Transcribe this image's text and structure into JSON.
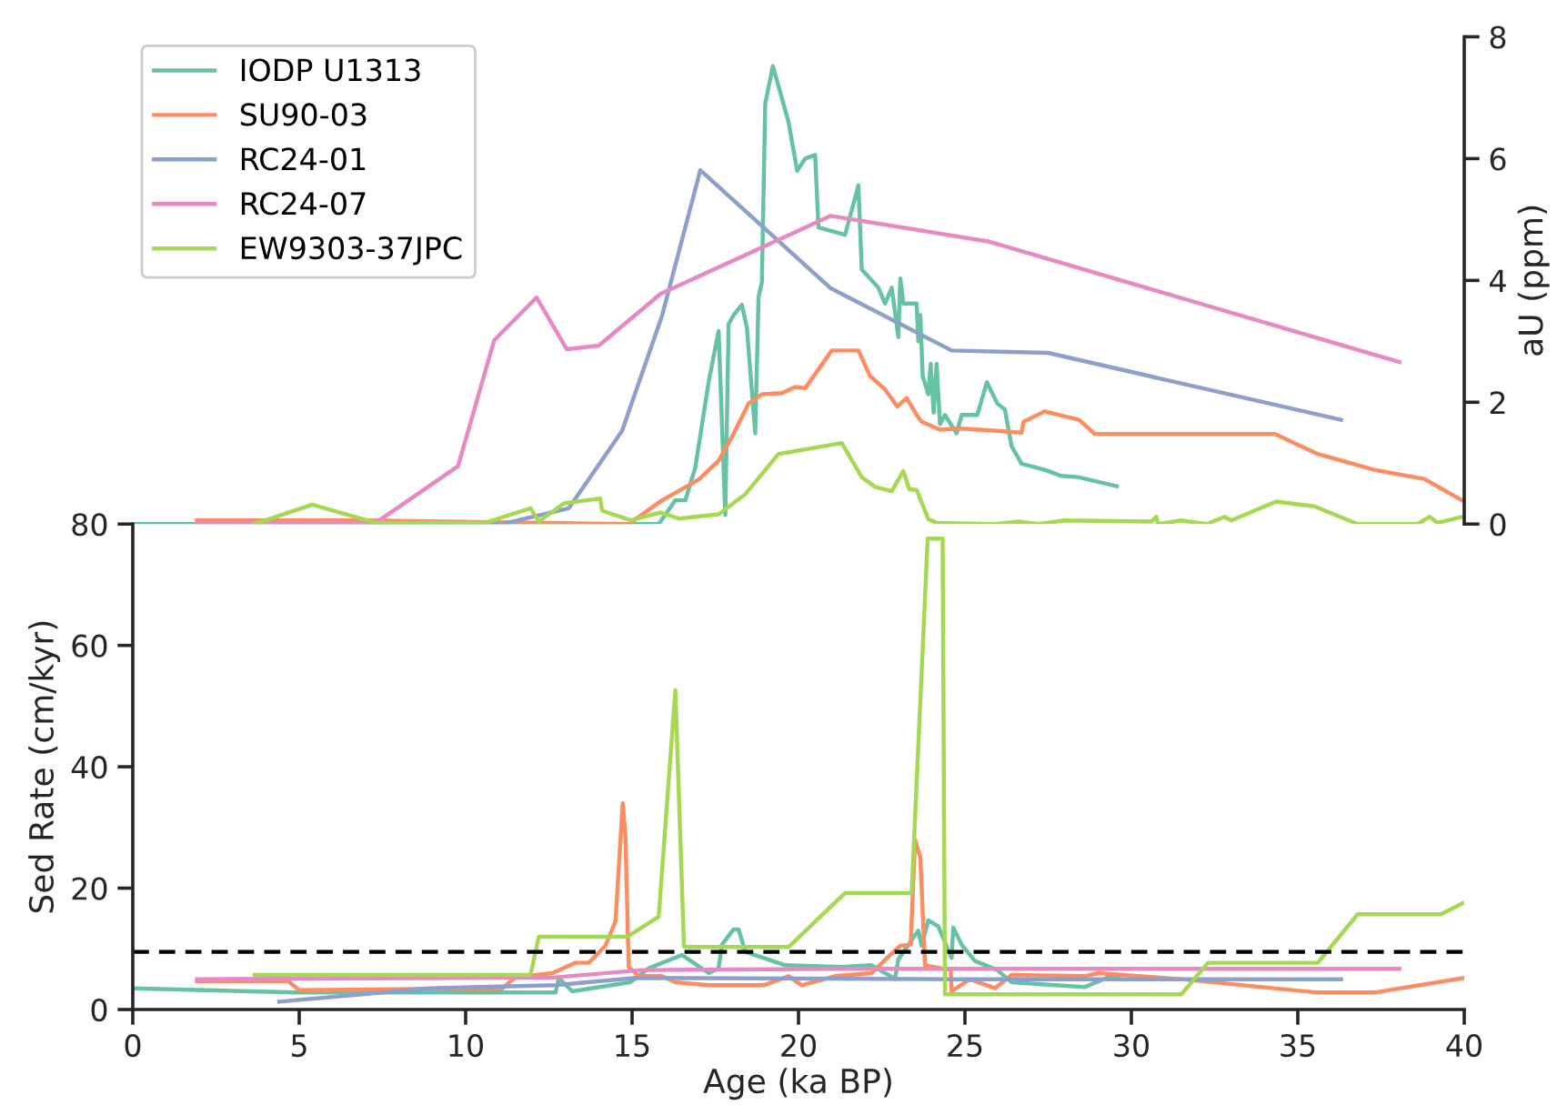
{
  "chart_data": [
    {
      "type": "line",
      "xlim": [
        0,
        40
      ],
      "y2lim": [
        0,
        8
      ],
      "y2ticks": [
        0,
        2,
        4,
        6,
        8
      ],
      "y2label": "aU (ppm)",
      "legend": "top left",
      "grid": false,
      "marker": "none",
      "line_style": "solid",
      "series": [
        {
          "name": "IODP U1313",
          "color": "#66c2a5",
          "axis": "y2",
          "x": [
            0,
            15.8,
            16.3,
            16.6,
            16.9,
            17.3,
            17.6,
            17.8,
            17.9,
            18.05,
            18.3,
            18.45,
            18.7,
            18.8,
            18.9,
            19.0,
            19.23,
            19.7,
            19.96,
            20.2,
            20.5,
            20.6,
            21.4,
            21.8,
            21.9,
            22.4,
            22.6,
            22.8,
            23.0,
            23.06,
            23.15,
            23.55,
            23.6,
            23.66,
            23.73,
            23.9,
            23.97,
            24.06,
            24.15,
            24.25,
            24.4,
            24.75,
            24.9,
            25.37,
            25.66,
            25.97,
            26.2,
            26.4,
            26.7,
            27.4,
            27.9,
            28.4,
            29.56
          ],
          "values": [
            0,
            0,
            0.39,
            0.39,
            0.93,
            2.33,
            3.17,
            0.15,
            3.28,
            3.43,
            3.6,
            3.22,
            1.49,
            3.73,
            3.97,
            6.9,
            7.52,
            6.6,
            5.8,
            6.0,
            6.06,
            4.87,
            4.75,
            5.56,
            4.18,
            3.88,
            3.62,
            3.88,
            3.07,
            4.03,
            3.62,
            3.62,
            3.0,
            3.43,
            2.43,
            2.13,
            2.63,
            1.83,
            2.63,
            1.64,
            1.79,
            1.49,
            1.79,
            1.79,
            2.33,
            1.98,
            1.88,
            1.28,
            0.99,
            0.89,
            0.79,
            0.77,
            0.62
          ]
        },
        {
          "name": "SU90-03",
          "color": "#fc8d62",
          "axis": "y2",
          "x": [
            1.93,
            7.0,
            14.9,
            15.9,
            17.0,
            17.6,
            18.0,
            18.5,
            18.9,
            19.5,
            19.9,
            20.2,
            21.0,
            21.8,
            22.15,
            22.6,
            22.97,
            23.25,
            23.55,
            23.7,
            24.25,
            24.8,
            25.97,
            26.7,
            26.76,
            27.4,
            28.43,
            28.9,
            34.3,
            35.6,
            37.3,
            38.8,
            40
          ],
          "values": [
            0.06,
            0.06,
            0,
            0.39,
            0.73,
            1.04,
            1.43,
            1.98,
            2.13,
            2.15,
            2.25,
            2.23,
            2.85,
            2.85,
            2.43,
            2.21,
            1.93,
            2.07,
            1.79,
            1.68,
            1.55,
            1.57,
            1.53,
            1.5,
            1.68,
            1.85,
            1.71,
            1.48,
            1.48,
            1.15,
            0.89,
            0.74,
            0.37
          ]
        },
        {
          "name": "RC24-01",
          "color": "#8da0cb",
          "axis": "y2",
          "x": [
            4.3,
            11.1,
            13.1,
            14.7,
            15.9,
            17.05,
            20.97,
            24.6,
            27.5,
            36.3
          ],
          "values": [
            0,
            0,
            0.26,
            1.53,
            3.42,
            5.81,
            3.87,
            2.85,
            2.81,
            1.71
          ]
        },
        {
          "name": "RC24-07",
          "color": "#e78ac3",
          "axis": "y2",
          "x": [
            1.93,
            7.3,
            9.77,
            10.86,
            12.13,
            13.04,
            14.0,
            15.86,
            20.97,
            25.7,
            38.05
          ],
          "values": [
            0.02,
            0.02,
            0.95,
            3.02,
            3.72,
            2.87,
            2.93,
            3.78,
            5.06,
            4.64,
            2.66
          ]
        },
        {
          "name": "EW9303-37JPC",
          "color": "#a6d854",
          "axis": "y2",
          "x": [
            3.66,
            5.39,
            7.3,
            10.58,
            11.95,
            12.2,
            12.95,
            14.04,
            14.1,
            14.96,
            15.86,
            16.4,
            17.6,
            18.4,
            19.4,
            21.3,
            21.9,
            22.3,
            22.8,
            23.15,
            23.33,
            23.55,
            23.9,
            24.15,
            25.9,
            26.6,
            27.2,
            27.98,
            30.6,
            30.75,
            30.8,
            31.5,
            32.26,
            32.8,
            33.0,
            34.35,
            35.5,
            36.8,
            38.6,
            38.96,
            39.2,
            39.95
          ],
          "values": [
            0,
            0.32,
            0.02,
            0.02,
            0.26,
            0.04,
            0.34,
            0.42,
            0.22,
            0.06,
            0.19,
            0.09,
            0.16,
            0.49,
            1.15,
            1.33,
            0.77,
            0.61,
            0.54,
            0.87,
            0.57,
            0.56,
            0.08,
            0.02,
            0,
            0.04,
            0,
            0.06,
            0.04,
            0.12,
            0,
            0.06,
            0,
            0.12,
            0.06,
            0.37,
            0.29,
            0,
            0,
            0.12,
            0.02,
            0.12
          ]
        }
      ]
    },
    {
      "type": "line",
      "xlabel": "Age (ka BP)",
      "ylabel": "Sed Rate (cm/kyr)",
      "xlim": [
        0,
        40
      ],
      "xticks": [
        0,
        5,
        10,
        15,
        20,
        25,
        30,
        35,
        40
      ],
      "ylim": [
        0,
        80
      ],
      "yticks": [
        0,
        20,
        40,
        60,
        80
      ],
      "grid": false,
      "legend": false,
      "marker": "none",
      "line_style": "solid",
      "ref_lines": [
        {
          "axis": "y",
          "value": 9.5,
          "color": "#000000",
          "line_style": "dashed"
        }
      ],
      "series": [
        {
          "color": "#66c2a5",
          "x": [
            0,
            4.9,
            12.7,
            12.8,
            13.2,
            14.95,
            15.5,
            16.5,
            17.3,
            17.6,
            17.7,
            18.05,
            18.2,
            18.4,
            18.96,
            19.6,
            21.3,
            22.2,
            22.7,
            22.9,
            23.0,
            23.6,
            23.7,
            23.9,
            24.2,
            24.6,
            24.65,
            24.9,
            25.3,
            25.97,
            26.4,
            27.7,
            28.6,
            29.25,
            29.6
          ],
          "values": [
            3.5,
            2.8,
            2.8,
            5.2,
            3.0,
            4.5,
            6.8,
            9.0,
            6.0,
            6.8,
            10.7,
            13.2,
            13.2,
            9.5,
            8.5,
            7.3,
            7.0,
            7.3,
            5.7,
            5.0,
            8.3,
            13.0,
            10.5,
            14.7,
            13.7,
            8.5,
            13.5,
            10.7,
            8.0,
            6.5,
            4.5,
            4.0,
            3.7,
            5.2,
            5.3
          ]
        },
        {
          "color": "#fc8d62",
          "x": [
            1.93,
            4.66,
            5.0,
            11.1,
            11.5,
            12.6,
            13.3,
            13.7,
            14.2,
            14.5,
            14.72,
            14.8,
            14.9,
            15.2,
            15.9,
            16.3,
            17.3,
            18.96,
            19.7,
            20.1,
            21.1,
            22.2,
            22.75,
            23.06,
            23.37,
            23.5,
            23.66,
            23.8,
            24.57,
            24.6,
            25.15,
            25.9,
            26.4,
            28.6,
            29.0,
            31.5,
            35.6,
            37.3,
            40
          ],
          "values": [
            4.7,
            4.7,
            3.2,
            3.5,
            5.3,
            6.0,
            7.7,
            7.7,
            10.5,
            14.5,
            34.0,
            28.5,
            7.0,
            5.5,
            5.5,
            4.5,
            4.0,
            4.0,
            5.5,
            4.0,
            5.5,
            6.0,
            9.0,
            10.5,
            10.7,
            28.0,
            25.0,
            7.3,
            6.5,
            3.0,
            5.0,
            3.5,
            5.7,
            5.5,
            6.0,
            5.0,
            2.8,
            2.8,
            5.2
          ]
        },
        {
          "color": "#8da0cb",
          "x": [
            4.4,
            8.9,
            12.7,
            15.1,
            24.6,
            36.3
          ],
          "values": [
            1.3,
            3.5,
            4.0,
            5.2,
            5.0,
            5.0
          ]
        },
        {
          "color": "#e78ac3",
          "x": [
            1.93,
            12.7,
            15.3,
            21.4,
            38.05
          ],
          "values": [
            5.0,
            5.3,
            6.5,
            6.7,
            6.7
          ]
        },
        {
          "color": "#a6d854",
          "x": [
            3.66,
            11.95,
            12.2,
            14.86,
            15.8,
            16.3,
            16.56,
            19.7,
            21.4,
            23.4,
            23.88,
            24.33,
            24.4,
            31.5,
            32.3,
            35.6,
            36.8,
            39.3,
            39.95
          ],
          "values": [
            5.7,
            5.7,
            12.0,
            12.0,
            15.3,
            52.6,
            10.3,
            10.3,
            19.2,
            19.2,
            77.6,
            77.6,
            2.5,
            2.5,
            7.7,
            7.7,
            15.7,
            15.7,
            17.5
          ]
        }
      ]
    }
  ]
}
